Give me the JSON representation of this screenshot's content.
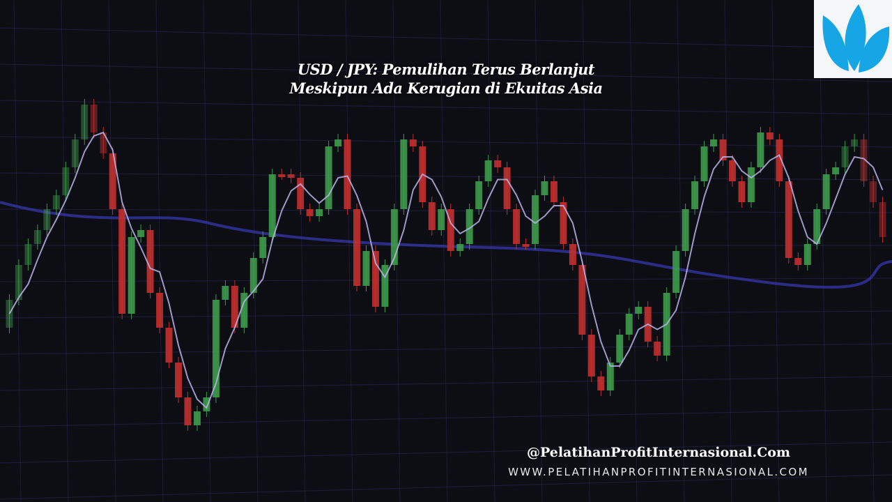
{
  "title": {
    "line1": "USD / JPY: Pemulihan Terus Berlanjut",
    "line2": "Meskipun Ada Kerugian di Ekuitas Asia"
  },
  "logo": {
    "icon": "lotus-icon",
    "color": "#16a6e6",
    "background": "#f4f6f8"
  },
  "footer": {
    "handle": "@PelatihanProfitInternasional.Com",
    "url": "WWW.PELATIHANPROFITINTERNASIONAL.COM"
  },
  "colors": {
    "bullish": "#3d9a4a",
    "bearish": "#c0302e",
    "moving_average": "#b9b4e6",
    "long_average": "#3a3ab8",
    "grid": "#2a2a5a",
    "background": "#0d0d14"
  }
}
